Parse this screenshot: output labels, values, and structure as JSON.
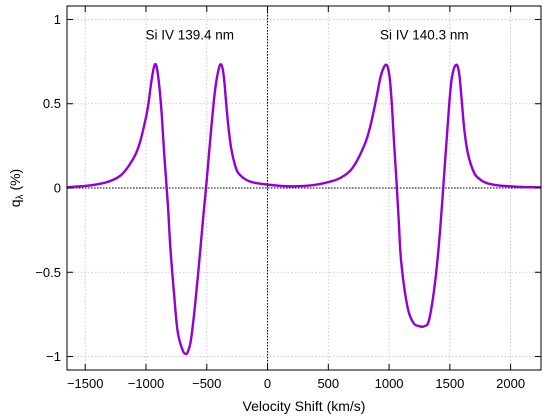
{
  "chart_data": {
    "type": "line",
    "xlabel": "Velocity Shift (km/s)",
    "ylabel": "q",
    "ylabel_subscript": "λ",
    "ylabel_unit": " (%)",
    "xlim": [
      -1650,
      2250
    ],
    "ylim": [
      -1.08,
      1.08
    ],
    "xticks": [
      -1500,
      -1000,
      -500,
      0,
      500,
      1000,
      1500,
      2000
    ],
    "yticks": [
      -1,
      -0.5,
      0,
      0.5,
      1
    ],
    "xtick_labels": [
      "−1500",
      "−1000",
      "−500",
      "0",
      "500",
      "1000",
      "1500",
      "2000"
    ],
    "ytick_labels": [
      "−1",
      "−0.5",
      "0",
      "0.5",
      "1"
    ],
    "grid": true,
    "reference_lines": {
      "x": 0,
      "y": 0
    },
    "annotations": [
      {
        "text": "Si IV 139.4 nm",
        "x": -640,
        "y": 0.88
      },
      {
        "text": "Si IV 140.3 nm",
        "x": 1290,
        "y": 0.88
      }
    ],
    "series_color": "#9400D3",
    "series": [
      {
        "x": [
          -1650,
          -1500,
          -1400,
          -1300,
          -1200,
          -1100,
          -1050,
          -1000,
          -980,
          -960,
          -940,
          -925,
          -910,
          -890,
          -870,
          -850,
          -820,
          -800,
          -770,
          -740,
          -700,
          -670,
          -650,
          -630,
          -600,
          -570,
          -530,
          -500,
          -470,
          -440,
          -420,
          -400,
          -385,
          -370,
          -355,
          -340,
          -320,
          -300,
          -280,
          -250,
          -200,
          -150,
          -100,
          -50,
          0,
          100,
          200,
          300,
          400,
          500,
          600,
          700,
          800,
          850,
          900,
          930,
          960,
          980,
          995,
          1010,
          1025,
          1040,
          1060,
          1080,
          1100,
          1150,
          1200,
          1250,
          1290,
          1330,
          1380,
          1420,
          1460,
          1490,
          1510,
          1530,
          1550,
          1565,
          1580,
          1600,
          1620,
          1650,
          1700,
          1750,
          1800,
          1900,
          2000,
          2100,
          2250
        ],
        "y": [
          0.005,
          0.012,
          0.022,
          0.04,
          0.08,
          0.18,
          0.27,
          0.42,
          0.5,
          0.61,
          0.7,
          0.735,
          0.71,
          0.6,
          0.43,
          0.2,
          -0.1,
          -0.35,
          -0.62,
          -0.85,
          -0.96,
          -0.985,
          -0.96,
          -0.9,
          -0.72,
          -0.5,
          -0.18,
          0.05,
          0.3,
          0.53,
          0.64,
          0.71,
          0.735,
          0.71,
          0.63,
          0.5,
          0.35,
          0.24,
          0.17,
          0.1,
          0.06,
          0.04,
          0.03,
          0.025,
          0.02,
          0.013,
          0.01,
          0.012,
          0.02,
          0.035,
          0.06,
          0.12,
          0.26,
          0.38,
          0.55,
          0.66,
          0.72,
          0.73,
          0.7,
          0.62,
          0.47,
          0.28,
          0.05,
          -0.2,
          -0.44,
          -0.7,
          -0.8,
          -0.82,
          -0.82,
          -0.78,
          -0.55,
          -0.25,
          0.15,
          0.45,
          0.62,
          0.7,
          0.73,
          0.72,
          0.66,
          0.5,
          0.34,
          0.2,
          0.09,
          0.05,
          0.03,
          0.015,
          0.01,
          0.006,
          0.004
        ]
      }
    ]
  }
}
